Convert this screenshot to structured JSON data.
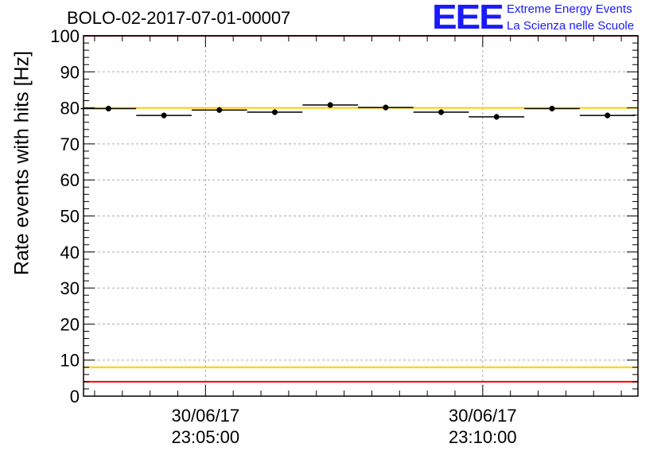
{
  "header": {
    "title": "BOLO-02-2017-07-01-00007",
    "logo_mark": "EEE",
    "logo_line1": "Extreme Energy Events",
    "logo_line2": "La Scienza nelle Scuole"
  },
  "chart_data": {
    "type": "scatter",
    "ylabel": "Rate events with hits [Hz]",
    "xlabel": "",
    "ylim": [
      0,
      100
    ],
    "yticks": [
      0,
      10,
      20,
      30,
      40,
      50,
      60,
      70,
      80,
      90,
      100
    ],
    "x_tick_labels": [
      {
        "date": "30/06/17",
        "time": "23:05:00",
        "minute": 5
      },
      {
        "date": "30/06/17",
        "time": "23:10:00",
        "minute": 10
      }
    ],
    "x_range_minutes": [
      2.8,
      12.8
    ],
    "grid": true,
    "series": [
      {
        "x_minutes": [
          3.25,
          4.25,
          5.25,
          6.25,
          7.25,
          8.25,
          9.25,
          10.25,
          11.25,
          12.25
        ],
        "values": [
          79.8,
          77.9,
          79.4,
          78.8,
          80.8,
          80.1,
          78.8,
          77.5,
          79.8,
          77.9
        ],
        "x_err_minutes": 0.5,
        "y_err": 0.8,
        "color": "#000000"
      }
    ],
    "reference_lines": [
      {
        "y": 100,
        "color": "#ff0000"
      },
      {
        "y": 80,
        "color": "#ffcc00"
      },
      {
        "y": 8,
        "color": "#ffcc00"
      },
      {
        "y": 4,
        "color": "#ff0000"
      }
    ],
    "colors": {
      "grid": "#aaaaaa",
      "axis": "#000000",
      "logo": "#1a1aff"
    }
  }
}
